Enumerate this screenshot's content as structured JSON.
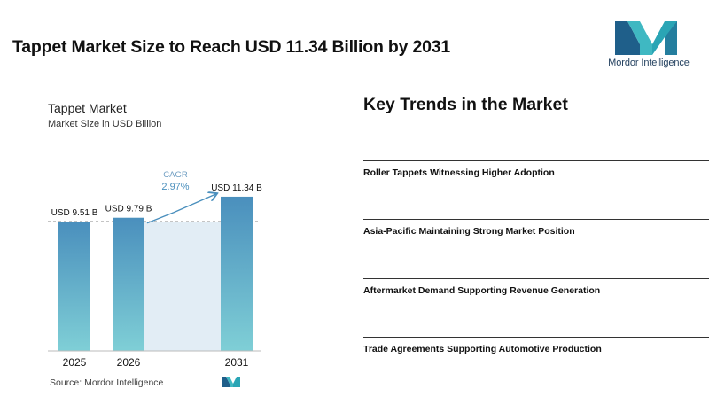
{
  "header": {
    "title": "Tappet Market Size to Reach USD 11.34 Billion by 2031"
  },
  "logo": {
    "text": "Mordor Intelligence",
    "colors": {
      "dark": "#1f5f8a",
      "light": "#3fb8c2"
    }
  },
  "chart_data": {
    "type": "bar",
    "title": "Tappet Market",
    "subtitle": "Market Size in USD Billion",
    "categories": [
      "2025",
      "2026",
      "2031"
    ],
    "values": [
      9.51,
      9.79,
      11.34
    ],
    "data_labels": [
      "USD 9.51 B",
      "USD 9.79 B",
      "USD 11.34 B"
    ],
    "cagr_label": "CAGR",
    "cagr_value": "2.97%",
    "bar_color_top": "#4a8fbd",
    "bar_color_bottom": "#7fcfd6",
    "shade_color": "#e2edf5"
  },
  "source": "Source: Mordor Intelligence",
  "trends": {
    "title": "Key Trends in the Market",
    "items": [
      "Roller Tappets Witnessing Higher Adoption",
      "Asia-Pacific Maintaining Strong Market Position",
      "Aftermarket Demand Supporting Revenue Generation",
      "Trade Agreements Supporting Automotive Production"
    ]
  }
}
